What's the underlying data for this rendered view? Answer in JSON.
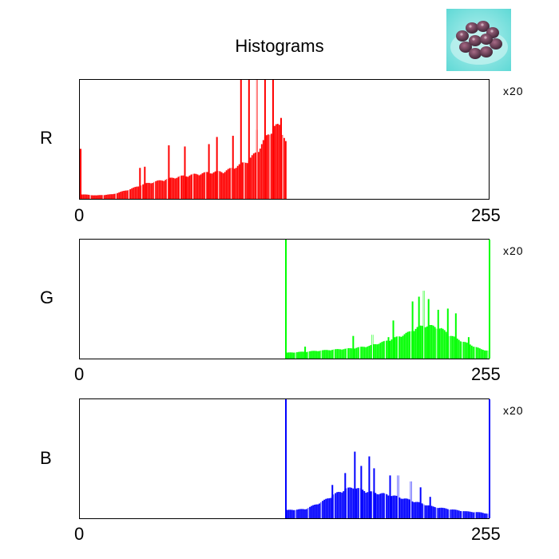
{
  "title": "Histograms",
  "thumbnail_icon": "strawberry-dish-image",
  "chart_data": [
    {
      "type": "bar",
      "series": [
        {
          "name": "R",
          "color": "#ff0000"
        }
      ],
      "xlim": [
        0,
        255
      ],
      "x_tick_labels": [
        "0",
        "255"
      ],
      "channel_label": "R",
      "scale_label": "x20",
      "spikes": [
        [
          100,
          1.0
        ],
        [
          105,
          1.0
        ],
        [
          110,
          1.0
        ],
        [
          115,
          1.0
        ],
        [
          120,
          1.0
        ],
        [
          125,
          0.68
        ],
        [
          110,
          0.58
        ],
        [
          95,
          0.53
        ],
        [
          85,
          0.52
        ],
        [
          80,
          0.46
        ],
        [
          65,
          0.44
        ],
        [
          55,
          0.45
        ],
        [
          40,
          0.27
        ],
        [
          37,
          0.26
        ],
        [
          0,
          0.42
        ]
      ],
      "envelope": [
        [
          0,
          0.04
        ],
        [
          10,
          0.03
        ],
        [
          20,
          0.04
        ],
        [
          25,
          0.06
        ],
        [
          30,
          0.08
        ],
        [
          40,
          0.13
        ],
        [
          50,
          0.16
        ],
        [
          60,
          0.19
        ],
        [
          70,
          0.21
        ],
        [
          80,
          0.23
        ],
        [
          90,
          0.24
        ],
        [
          95,
          0.27
        ],
        [
          100,
          0.3
        ],
        [
          105,
          0.34
        ],
        [
          110,
          0.41
        ],
        [
          115,
          0.52
        ],
        [
          120,
          0.62
        ],
        [
          125,
          0.64
        ],
        [
          128,
          0.5
        ],
        [
          128.5,
          0.0
        ]
      ],
      "data_range": [
        0,
        128
      ]
    },
    {
      "type": "bar",
      "series": [
        {
          "name": "G",
          "color": "#00ff00"
        }
      ],
      "xlim": [
        0,
        255
      ],
      "x_tick_labels": [
        "0",
        "255"
      ],
      "channel_label": "G",
      "scale_label": "x20",
      "spikes": [
        [
          128,
          1.0
        ],
        [
          255,
          1.0
        ],
        [
          214,
          0.57
        ],
        [
          217,
          0.5
        ],
        [
          223,
          0.41
        ],
        [
          211,
          0.52
        ],
        [
          207,
          0.48
        ],
        [
          229,
          0.42
        ],
        [
          234,
          0.38
        ],
        [
          242,
          0.18
        ],
        [
          192,
          0.18
        ],
        [
          195,
          0.32
        ],
        [
          182,
          0.2
        ],
        [
          170,
          0.19
        ],
        [
          140,
          0.1
        ]
      ],
      "envelope": [
        [
          128,
          0.05
        ],
        [
          140,
          0.06
        ],
        [
          150,
          0.07
        ],
        [
          160,
          0.08
        ],
        [
          170,
          0.09
        ],
        [
          180,
          0.11
        ],
        [
          190,
          0.15
        ],
        [
          200,
          0.2
        ],
        [
          205,
          0.23
        ],
        [
          210,
          0.27
        ],
        [
          215,
          0.29
        ],
        [
          220,
          0.28
        ],
        [
          225,
          0.26
        ],
        [
          230,
          0.21
        ],
        [
          235,
          0.17
        ],
        [
          240,
          0.14
        ],
        [
          245,
          0.11
        ],
        [
          250,
          0.08
        ],
        [
          254,
          0.07
        ]
      ],
      "data_range": [
        128,
        255
      ]
    },
    {
      "type": "bar",
      "series": [
        {
          "name": "B",
          "color": "#0000ff"
        }
      ],
      "xlim": [
        0,
        255
      ],
      "x_tick_labels": [
        "0",
        "255"
      ],
      "channel_label": "B",
      "scale_label": "x20",
      "spikes": [
        [
          128,
          1.0
        ],
        [
          255,
          1.0
        ],
        [
          171,
          0.56
        ],
        [
          180,
          0.52
        ],
        [
          175,
          0.44
        ],
        [
          183,
          0.42
        ],
        [
          165,
          0.38
        ],
        [
          198,
          0.36
        ],
        [
          206,
          0.31
        ],
        [
          157,
          0.28
        ],
        [
          193,
          0.36
        ],
        [
          212,
          0.26
        ],
        [
          218,
          0.18
        ]
      ],
      "envelope": [
        [
          128,
          0.07
        ],
        [
          140,
          0.08
        ],
        [
          150,
          0.14
        ],
        [
          160,
          0.22
        ],
        [
          165,
          0.25
        ],
        [
          170,
          0.27
        ],
        [
          175,
          0.25
        ],
        [
          180,
          0.23
        ],
        [
          190,
          0.21
        ],
        [
          200,
          0.18
        ],
        [
          210,
          0.14
        ],
        [
          220,
          0.1
        ],
        [
          230,
          0.08
        ],
        [
          240,
          0.06
        ],
        [
          250,
          0.05
        ],
        [
          254,
          0.04
        ]
      ],
      "data_range": [
        128,
        255
      ]
    }
  ]
}
